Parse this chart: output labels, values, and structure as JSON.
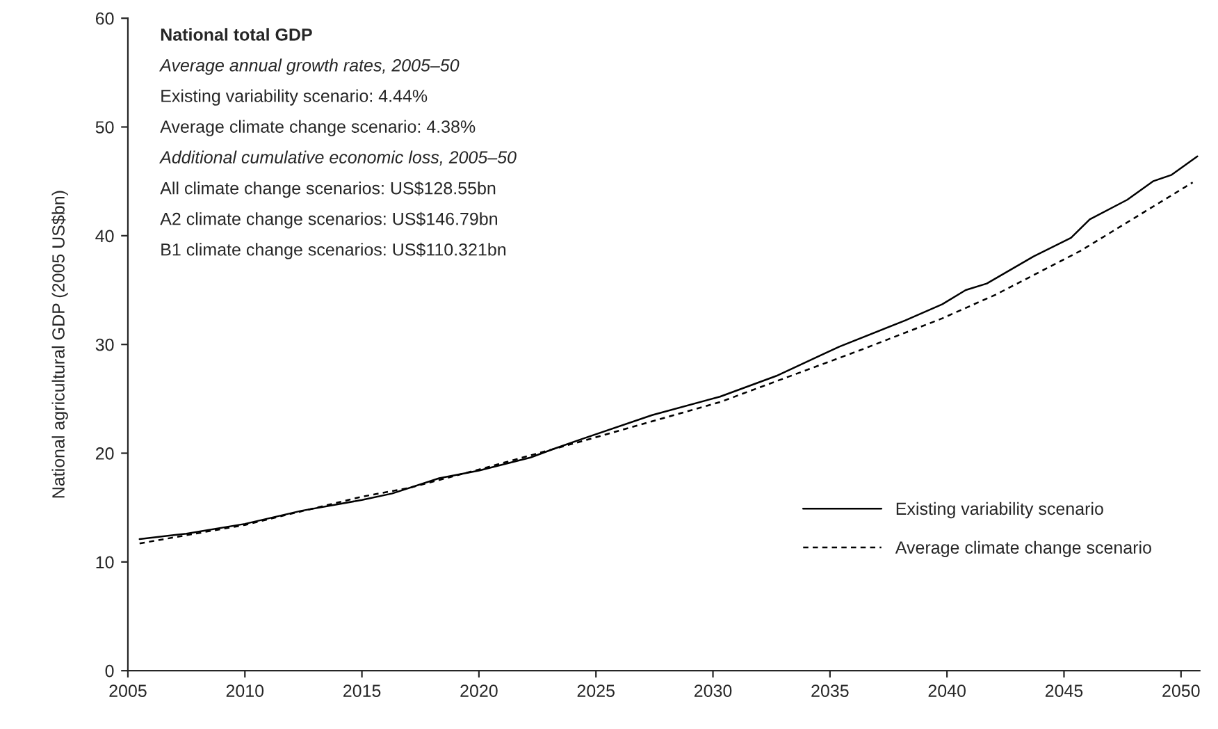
{
  "chart_data": {
    "type": "line",
    "title": "National total GDP",
    "ylabel": "National agricultural GDP (2005 US$bn)",
    "annotations": [
      "Average annual growth rates, 2005–50",
      "Existing variability scenario: 4.44%",
      "Average climate change scenario: 4.38%",
      "Additional cumulative economic loss, 2005–50",
      "All climate change scenarios: US$128.55bn",
      "A2 climate change scenarios: US$146.79bn",
      "B1 climate change scenarios: US$110.321bn"
    ],
    "series": [
      {
        "name": "Existing variability scenario",
        "color": "#000000",
        "line_style": "solid",
        "x": [
          2005.5,
          2007.5,
          2010,
          2012.4,
          2015,
          2016.3,
          2018.3,
          2020,
          2022.2,
          2023.2,
          2024.4,
          2027.4,
          2030.3,
          2032.7,
          2035.4,
          2038.2,
          2039.8,
          2040.8,
          2041.7,
          2043.7,
          2045.3,
          2046.1,
          2047.7,
          2048.8,
          2049.6,
          2050.7
        ],
        "values": [
          12.1,
          12.6,
          13.5,
          14.7,
          15.7,
          16.3,
          17.7,
          18.4,
          19.6,
          20.4,
          21.3,
          23.5,
          25.2,
          27.1,
          29.8,
          32.2,
          33.7,
          35.0,
          35.6,
          38.1,
          39.8,
          41.5,
          43.3,
          45.0,
          45.6,
          47.3
        ]
      },
      {
        "name": "Average climate change scenario",
        "color": "#000000",
        "line_style": "dashed",
        "x": [
          2005.5,
          2010,
          2015,
          2017,
          2020,
          2024.4,
          2030.3,
          2036.2,
          2039.8,
          2042.1,
          2045.7,
          2050.5
        ],
        "values": [
          11.7,
          13.4,
          16.0,
          16.8,
          18.5,
          21.1,
          24.7,
          29.4,
          32.4,
          34.6,
          38.6,
          44.9
        ]
      }
    ],
    "xlim": [
      2005,
      2050.8
    ],
    "xticks": [
      2005,
      2010,
      2015,
      2020,
      2025,
      2030,
      2035,
      2040,
      2045,
      2050
    ],
    "ylim": [
      0,
      60
    ],
    "yticks": [
      0,
      10,
      20,
      30,
      40,
      50,
      60
    ],
    "grid": false,
    "legend": "bottom right"
  }
}
